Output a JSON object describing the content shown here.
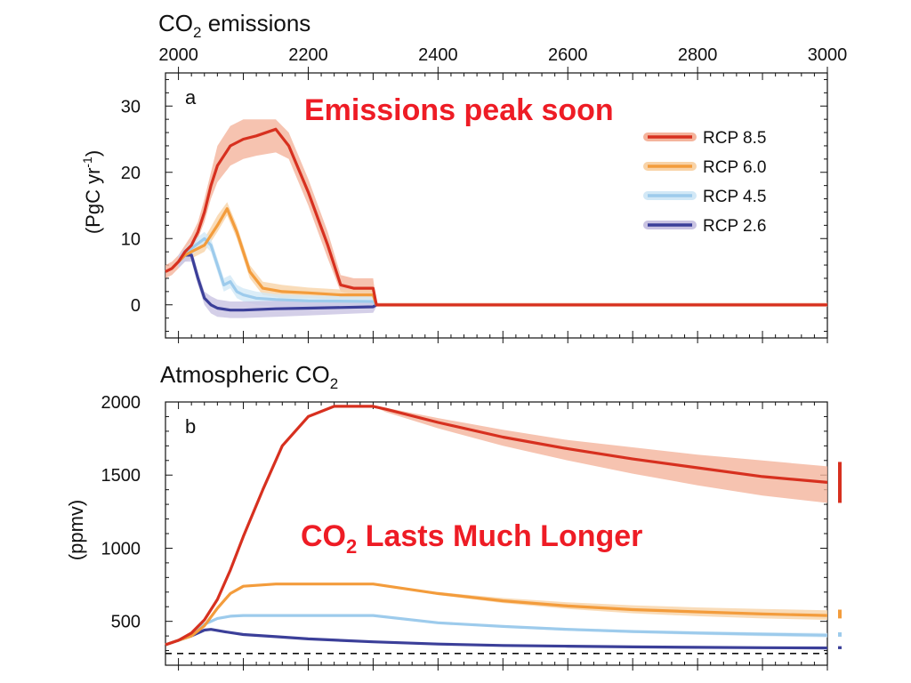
{
  "headline_top": "Emissions peak soon",
  "headline_bottom_main": "CO",
  "headline_bottom_sub": "2",
  "headline_bottom_rest": " Lasts Much Longer",
  "headline_color": "#ee1c25",
  "chart_data": [
    {
      "type": "line",
      "panel_label": "a",
      "title_main": "CO",
      "title_sub": "2",
      "title_rest": " emissions",
      "ylabel": "(PgC yr-1)",
      "ylabel_main": "(PgC yr",
      "ylabel_sup": "-1",
      "ylabel_close": ")",
      "xlim": [
        1980,
        3000
      ],
      "ylim": [
        -5,
        35
      ],
      "xticks": [
        2000,
        2200,
        2400,
        2600,
        2800,
        3000
      ],
      "xtick_labels": [
        "2000",
        "2200",
        "2400",
        "2600",
        "2800",
        "3000"
      ],
      "yticks": [
        0,
        10,
        20,
        30
      ],
      "ytick_labels": [
        "0",
        "10",
        "20",
        "30"
      ],
      "legend_position": "top-right",
      "series": [
        {
          "name": "RCP 8.5",
          "color": "#d7301f",
          "band_color": "#f4b49c",
          "x": [
            1980,
            1990,
            2000,
            2010,
            2020,
            2030,
            2040,
            2050,
            2060,
            2080,
            2100,
            2120,
            2150,
            2170,
            2200,
            2230,
            2250,
            2270,
            2300,
            2305,
            2400,
            2500,
            2600,
            2700,
            2800,
            2900,
            3000
          ],
          "y": [
            5,
            5.5,
            6.5,
            8,
            9,
            11,
            14,
            18,
            21,
            24,
            25,
            25.5,
            26.5,
            24,
            17,
            9,
            3,
            2.5,
            2.5,
            0,
            0,
            0,
            0,
            0,
            0,
            0,
            0
          ],
          "upper": [
            6,
            6.5,
            7.5,
            9,
            10.5,
            12.5,
            16,
            20,
            24,
            27,
            28,
            28,
            28,
            26,
            19,
            11,
            4.5,
            4,
            4,
            0.3,
            0.3,
            0.3,
            0.3,
            0.3,
            0.3,
            0.3,
            0.3
          ],
          "lower": [
            4,
            4.5,
            5.5,
            7,
            8,
            10,
            12.5,
            16,
            18.5,
            21,
            22,
            22.5,
            23,
            22,
            15,
            7,
            2,
            1.5,
            1.5,
            -0.3,
            -0.3,
            -0.3,
            -0.3,
            -0.3,
            -0.3,
            -0.3,
            -0.3
          ]
        },
        {
          "name": "RCP 6.0",
          "color": "#f39c3c",
          "band_color": "#f8d3a8",
          "x": [
            2000,
            2010,
            2020,
            2040,
            2060,
            2075,
            2090,
            2110,
            2130,
            2160,
            2200,
            2250,
            2300,
            2305
          ],
          "y": [
            6.5,
            7.5,
            8,
            9,
            12,
            14.5,
            11,
            5,
            2.5,
            2,
            1.8,
            1.5,
            1.5,
            0
          ],
          "upper": [
            7.5,
            8.5,
            9,
            10,
            13.5,
            15.5,
            12,
            6,
            3.5,
            3,
            2.6,
            2.3,
            2.3,
            0.3
          ],
          "lower": [
            5.5,
            6.5,
            7,
            8,
            11,
            13.5,
            10,
            4,
            1.5,
            1,
            1,
            0.8,
            0.8,
            -0.3
          ]
        },
        {
          "name": "RCP 4.5",
          "color": "#9dcbec",
          "band_color": "#d2e8f6",
          "x": [
            2000,
            2010,
            2020,
            2040,
            2050,
            2060,
            2070,
            2080,
            2090,
            2100,
            2120,
            2150,
            2200,
            2300,
            2305
          ],
          "y": [
            6.5,
            7.5,
            8.5,
            10,
            9,
            6,
            3,
            3.5,
            2,
            1.5,
            1,
            0.8,
            0.6,
            0.5,
            0
          ],
          "upper": [
            7.5,
            8.5,
            9.5,
            11,
            10,
            7,
            4,
            4.5,
            3,
            2.5,
            2,
            1.6,
            1.4,
            1.3,
            0.3
          ],
          "lower": [
            5.5,
            6.5,
            7.5,
            9,
            8,
            5,
            2,
            2.5,
            1,
            0.5,
            0,
            -0.2,
            -0.4,
            -0.5,
            -0.3
          ]
        },
        {
          "name": "RCP 2.6",
          "color": "#3b3f99",
          "band_color": "#c9c3e2",
          "x": [
            2000,
            2010,
            2020,
            2030,
            2040,
            2050,
            2060,
            2080,
            2100,
            2150,
            2200,
            2300,
            2305
          ],
          "y": [
            6.5,
            7.5,
            7.5,
            4,
            1,
            0,
            -0.5,
            -0.8,
            -0.8,
            -0.6,
            -0.5,
            -0.3,
            0
          ],
          "upper": [
            7.5,
            8.5,
            8.5,
            5,
            2,
            1.3,
            0.8,
            0.5,
            0.5,
            0.6,
            0.6,
            0.6,
            0.3
          ],
          "lower": [
            5.5,
            6.5,
            6.5,
            3,
            0,
            -1.3,
            -1.8,
            -2,
            -2,
            -1.8,
            -1.6,
            -1.2,
            -0.3
          ]
        }
      ]
    },
    {
      "type": "line",
      "panel_label": "b",
      "title_main": "Atmospheric CO",
      "title_sub": "2",
      "ylabel": "(ppmv)",
      "xlim": [
        1980,
        3000
      ],
      "ylim": [
        200,
        2000
      ],
      "yticks": [
        500,
        1000,
        1500,
        2000
      ],
      "ytick_labels": [
        "500",
        "1000",
        "1500",
        "2000"
      ],
      "reference_line": {
        "y": 280,
        "style": "dashed",
        "color": "#111111"
      },
      "series": [
        {
          "name": "RCP 8.5",
          "color": "#d7301f",
          "band_color": "#f4b49c",
          "x": [
            1980,
            2000,
            2020,
            2040,
            2060,
            2080,
            2100,
            2130,
            2160,
            2200,
            2240,
            2260,
            2300,
            2320,
            2400,
            2500,
            2600,
            2700,
            2800,
            2900,
            3000
          ],
          "y": [
            340,
            370,
            420,
            510,
            650,
            850,
            1080,
            1400,
            1700,
            1900,
            1970,
            1970,
            1970,
            1950,
            1860,
            1760,
            1680,
            1610,
            1550,
            1490,
            1450
          ],
          "upper": [
            340,
            370,
            420,
            510,
            650,
            850,
            1080,
            1400,
            1700,
            1900,
            1970,
            1970,
            1970,
            1960,
            1890,
            1810,
            1740,
            1690,
            1640,
            1600,
            1560
          ],
          "lower": [
            340,
            370,
            420,
            510,
            650,
            850,
            1080,
            1400,
            1700,
            1900,
            1970,
            1970,
            1970,
            1930,
            1820,
            1700,
            1600,
            1510,
            1430,
            1360,
            1310
          ]
        },
        {
          "name": "RCP 6.0",
          "color": "#f39c3c",
          "band_color": "#f8d3a8",
          "x": [
            1980,
            2000,
            2020,
            2040,
            2060,
            2080,
            2100,
            2150,
            2200,
            2250,
            2300,
            2400,
            2500,
            2600,
            2700,
            2800,
            2900,
            3000
          ],
          "y": [
            340,
            370,
            400,
            470,
            590,
            690,
            740,
            755,
            755,
            755,
            755,
            690,
            640,
            605,
            580,
            565,
            550,
            540
          ],
          "upper": [
            340,
            370,
            400,
            470,
            590,
            690,
            740,
            755,
            755,
            755,
            755,
            700,
            660,
            630,
            610,
            595,
            585,
            575
          ],
          "lower": [
            340,
            370,
            400,
            470,
            590,
            690,
            740,
            755,
            755,
            755,
            755,
            680,
            625,
            585,
            555,
            535,
            520,
            510
          ]
        },
        {
          "name": "RCP 4.5",
          "color": "#9dcbec",
          "band_color": "#d2e8f6",
          "x": [
            1980,
            2000,
            2020,
            2040,
            2060,
            2080,
            2100,
            2150,
            2200,
            2250,
            2300,
            2400,
            2500,
            2600,
            2700,
            2800,
            2900,
            3000
          ],
          "y": [
            340,
            370,
            400,
            480,
            520,
            535,
            540,
            540,
            540,
            540,
            540,
            490,
            465,
            445,
            430,
            420,
            412,
            405
          ],
          "upper": [
            340,
            370,
            400,
            480,
            520,
            535,
            540,
            540,
            540,
            540,
            540,
            495,
            472,
            455,
            442,
            432,
            425,
            420
          ],
          "lower": [
            340,
            370,
            400,
            480,
            520,
            535,
            540,
            540,
            540,
            540,
            540,
            485,
            458,
            435,
            420,
            408,
            398,
            390
          ]
        },
        {
          "name": "RCP 2.6",
          "color": "#3b3f99",
          "band_color": "#c9c3e2",
          "x": [
            1980,
            2000,
            2020,
            2040,
            2050,
            2070,
            2100,
            2150,
            2200,
            2300,
            2400,
            2500,
            2600,
            2700,
            2800,
            2900,
            3000
          ],
          "y": [
            340,
            370,
            400,
            440,
            445,
            430,
            410,
            395,
            380,
            360,
            345,
            335,
            330,
            325,
            322,
            320,
            318
          ],
          "upper": [
            340,
            370,
            400,
            440,
            445,
            430,
            410,
            395,
            380,
            360,
            348,
            340,
            336,
            332,
            330,
            328,
            326
          ],
          "lower": [
            340,
            370,
            400,
            440,
            445,
            430,
            410,
            395,
            380,
            360,
            342,
            330,
            324,
            318,
            314,
            312,
            310
          ]
        }
      ],
      "side_markers": [
        {
          "series": "RCP 8.5",
          "low": 1310,
          "high": 1590,
          "color": "#d7301f"
        },
        {
          "series": "RCP 6.0",
          "low": 520,
          "high": 580,
          "color": "#f39c3c"
        },
        {
          "series": "RCP 4.5",
          "low": 395,
          "high": 425,
          "color": "#9dcbec"
        },
        {
          "series": "RCP 2.6",
          "low": 310,
          "high": 330,
          "color": "#3b3f99"
        }
      ]
    }
  ]
}
